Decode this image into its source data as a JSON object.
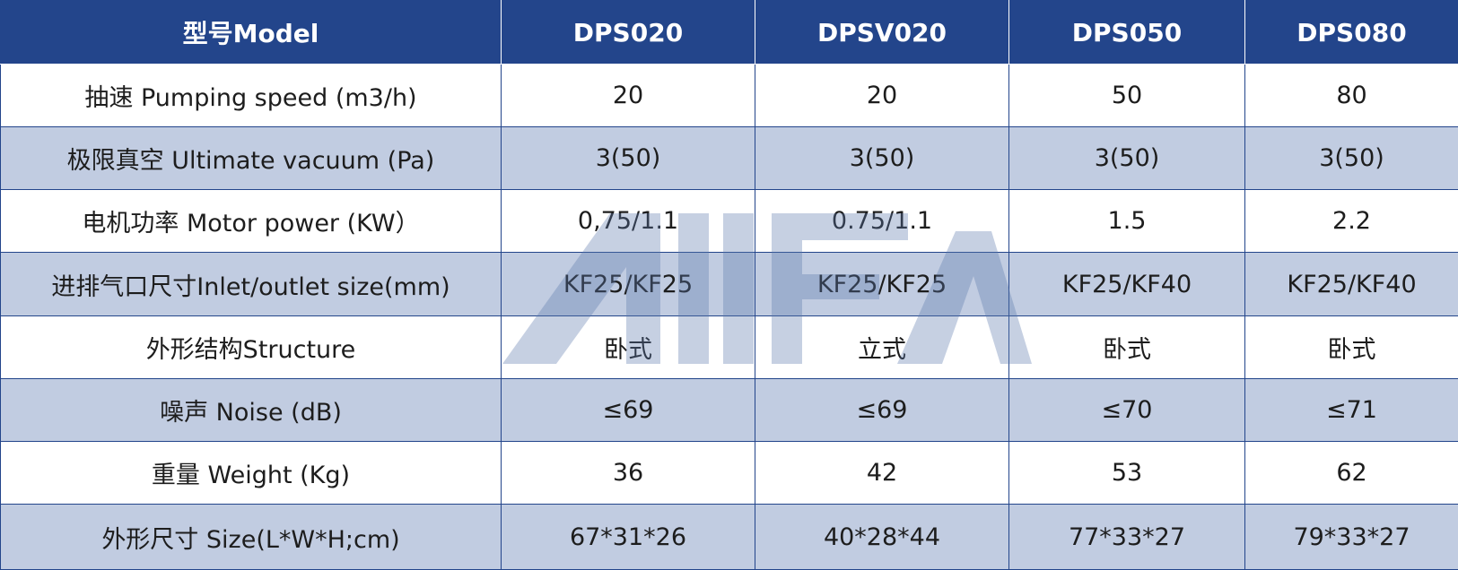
{
  "colors": {
    "header_bg": "#23458b",
    "header_text": "#ffffff",
    "row_alt_bg": "#c1cce1",
    "row_bg": "#ffffff",
    "grid_line": "#23458b",
    "watermark": "#5d77ab"
  },
  "watermark": {
    "name": "aifa-logo-watermark",
    "text": "AIFA"
  },
  "table": {
    "header": {
      "label": "型号Model",
      "models": [
        "DPS020",
        "DPSV020",
        "DPS050",
        "DPS080"
      ]
    },
    "rows": [
      {
        "param": "抽速 Pumping speed (m3/h)",
        "values": [
          "20",
          "20",
          "50",
          "80"
        ]
      },
      {
        "param": "极限真空 Ultimate vacuum (Pa)",
        "values": [
          "3(50)",
          "3(50)",
          "3(50)",
          "3(50)"
        ]
      },
      {
        "param": "电机功率 Motor power (KW）",
        "values": [
          "0,75/1.1",
          "0.75/1.1",
          "1.5",
          "2.2"
        ]
      },
      {
        "param": "进排气口尺寸Inlet/outlet size(mm)",
        "values": [
          "KF25/KF25",
          "KF25/KF25",
          "KF25/KF40",
          "KF25/KF40"
        ]
      },
      {
        "param": "外形结构Structure",
        "values": [
          "卧式",
          "立式",
          "卧式",
          "卧式"
        ]
      },
      {
        "param": "噪声 Noise (dB)",
        "values": [
          "≤69",
          "≤69",
          "≤70",
          "≤71"
        ]
      },
      {
        "param": "重量 Weight (Kg)",
        "values": [
          "36",
          "42",
          "53",
          "62"
        ]
      },
      {
        "param": "外形尺寸 Size(L*W*H;cm)",
        "values": [
          "67*31*26",
          "40*28*44",
          "77*33*27",
          "79*33*27"
        ]
      }
    ]
  }
}
